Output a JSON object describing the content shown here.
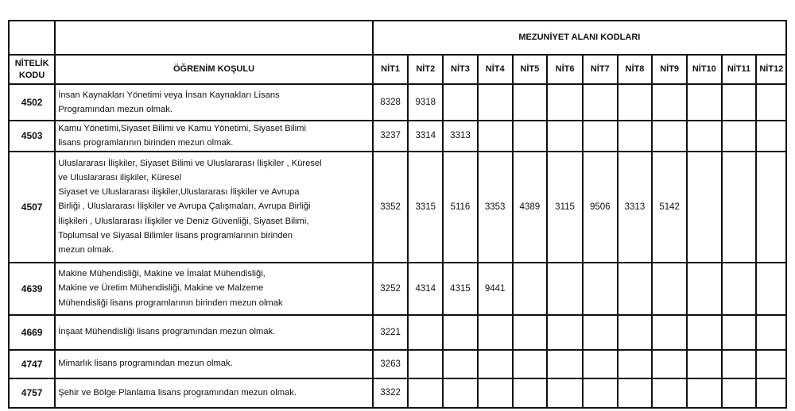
{
  "header": {
    "group_title": "MEZUNİYET ALANI KODLARI",
    "code_col": [
      "NİTELİK",
      "KODU"
    ],
    "condition_col": "ÖĞRENİM KOŞULU",
    "nit_cols": [
      "NİT1",
      "NİT2",
      "NİT3",
      "NİT4",
      "NİT5",
      "NİT6",
      "NİT7",
      "NİT8",
      "NİT9",
      "NİT10",
      "NİT11",
      "NİT12"
    ]
  },
  "rows": [
    {
      "code": "4502",
      "lines": [
        "İnsan Kaynakları Yönetimi veya İnsan Kaynakları Lisans",
        "Programından mezun olmak."
      ],
      "nits": [
        "8328",
        "9318"
      ]
    },
    {
      "code": "4503",
      "lines": [
        "Kamu Yönetimi,Siyaset Bilimi ve Kamu Yönetimi, Siyaset Bilimi",
        "lisans programlarının birinden mezun olmak."
      ],
      "nits": [
        "3237",
        "3314",
        "3313"
      ]
    },
    {
      "code": "4507",
      "lines": [
        "Uluslararası İlişkiler, Siyaset Bilimi ve  Uluslararası İlişkiler , Küresel",
        "ve Uluslararası ilişkiler, Küresel",
        "Siyaset ve Uluslararası ilişkiler,Uluslararası İlişkiler ve Avrupa",
        "Birliği , Uluslararası İlişkiler ve Avrupa Çalışmaları, Avrupa Birliği",
        "İlişkileri , Uluslararası İlişkiler ve Deniz Güvenliği, Siyaset Bilimi,",
        "Toplumsal ve Siyasal Bilimler lisans programlarının birinden",
        "mezun olmak."
      ],
      "nits": [
        "3352",
        "3315",
        "5116",
        "3353",
        "4389",
        "3115",
        "9506",
        "3313",
        "5142"
      ]
    },
    {
      "code": "4639",
      "lines": [
        "Makine Mühendisliği, Makine ve İmalat Mühendisliği,",
        "Makine ve Üretim Mühendisliği, Makine ve Malzeme",
        "Mühendisliği lisans programlarının birinden mezun olmak"
      ],
      "nits": [
        "3252",
        "4314",
        "4315",
        "9441"
      ]
    },
    {
      "code": "4669",
      "lines": [
        "İnşaat Mühendisliği lisans programından mezun olmak."
      ],
      "nits": [
        "3221"
      ]
    },
    {
      "code": "4747",
      "lines": [
        "Mimarlık lisans programından mezun olmak."
      ],
      "nits": [
        "3263"
      ]
    },
    {
      "code": "4757",
      "lines": [
        "Şehir ve Bölge Planlama lisans programından mezun olmak."
      ],
      "nits": [
        "3322"
      ]
    }
  ]
}
